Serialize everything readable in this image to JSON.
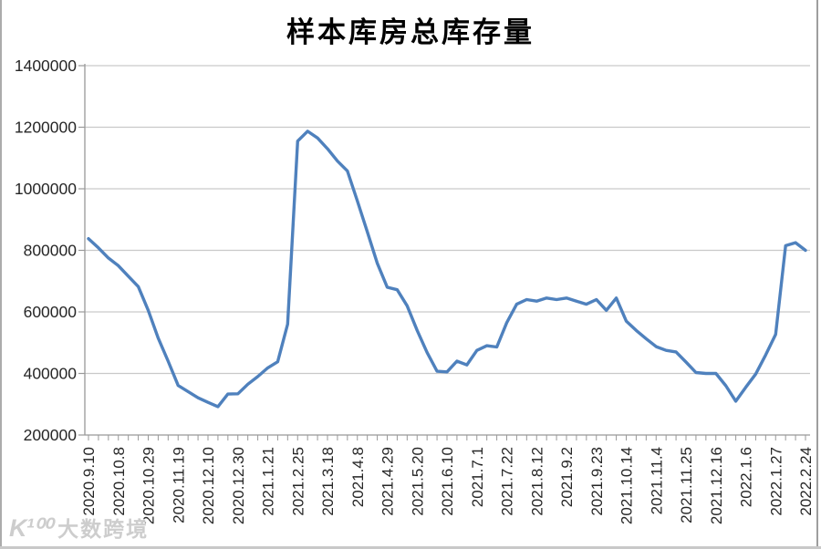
{
  "chart_data": {
    "type": "line",
    "title": "样本库房总库存量",
    "xlabel": "",
    "ylabel": "",
    "ylim": [
      200000,
      1400000
    ],
    "y_ticks": [
      200000,
      400000,
      600000,
      800000,
      1000000,
      1200000,
      1400000
    ],
    "grid": true,
    "legend": "none",
    "x_tick_labels": [
      "2020.9.10",
      "2020.10.8",
      "2020.10.29",
      "2020.11.19",
      "2020.12.10",
      "2020.12.30",
      "2021.1.21",
      "2021.2.25",
      "2021.3.18",
      "2021.4.8",
      "2021.4.29",
      "2021.5.20",
      "2021.6.10",
      "2021.7.1",
      "2021.7.22",
      "2021.8.12",
      "2021.9.2",
      "2021.9.23",
      "2021.10.14",
      "2021.11.4",
      "2021.11.25",
      "2021.12.16",
      "2022.1.6",
      "2022.1.27",
      "2022.2.24"
    ],
    "points_per_label": 3,
    "series": [
      {
        "name": "样本库房总库存量",
        "values": [
          838000,
          808000,
          775000,
          750000,
          716000,
          682000,
          605000,
          515000,
          440000,
          361000,
          341000,
          321000,
          306000,
          292000,
          333000,
          334000,
          365000,
          390000,
          418000,
          438000,
          560000,
          1155000,
          1187000,
          1165000,
          1130000,
          1090000,
          1058000,
          960000,
          860000,
          758000,
          680000,
          672000,
          620000,
          540000,
          468000,
          407000,
          405000,
          440000,
          428000,
          475000,
          490000,
          486000,
          565000,
          625000,
          640000,
          635000,
          645000,
          640000,
          645000,
          635000,
          625000,
          640000,
          605000,
          645000,
          570000,
          540000,
          513000,
          487000,
          475000,
          470000,
          437000,
          403000,
          400000,
          400000,
          360000,
          310000,
          355000,
          398000,
          460000,
          527000,
          815000,
          825000,
          800000
        ]
      }
    ],
    "colors": {
      "line": "#4F81BD",
      "grid": "#C9C9C9",
      "axis": "#999999",
      "label": "#262626"
    }
  },
  "watermark": {
    "logo": "K¹⁰⁰",
    "text": "大数跨境"
  }
}
